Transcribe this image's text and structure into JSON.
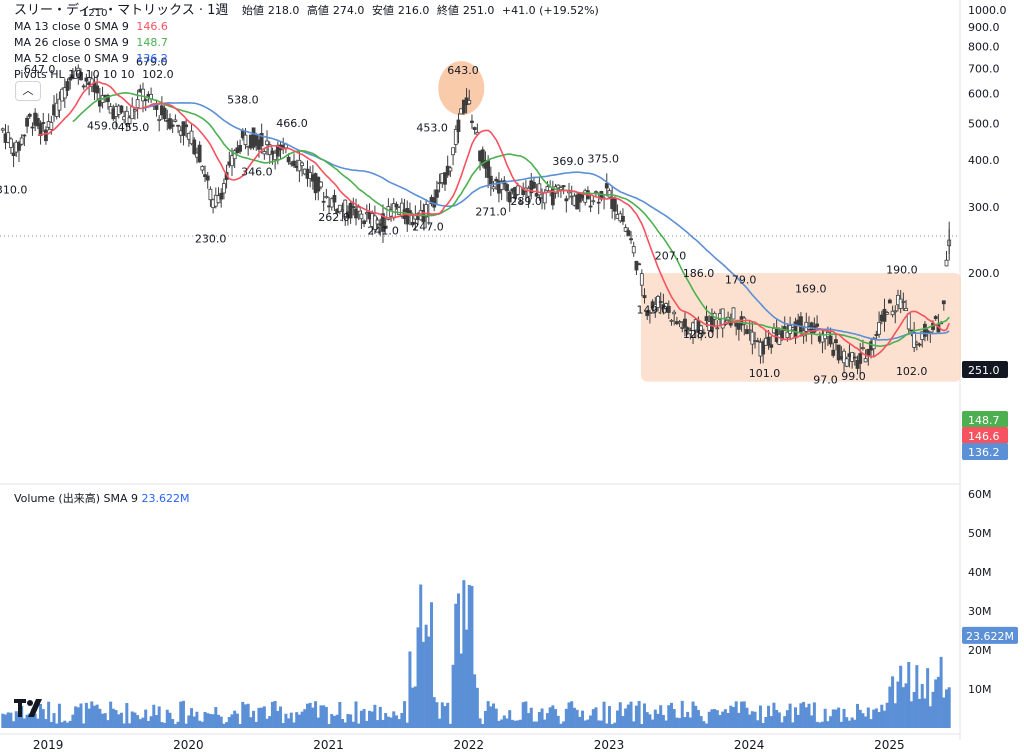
{
  "header": {
    "title": "スリー・ディー・マトリックス · 1週",
    "open_label": "始値",
    "open": "218.0",
    "high_label": "高値",
    "high": "274.0",
    "low_label": "安値",
    "low": "216.0",
    "close_label": "終値",
    "close": "251.0",
    "change": "+41.0 (+19.52%)"
  },
  "indicators": [
    {
      "label": "MA 13 close 0 SMA 9",
      "value": "146.6",
      "color": "#f7525f"
    },
    {
      "label": "MA 26 close 0 SMA 9",
      "value": "148.7",
      "color": "#4caf50"
    },
    {
      "label": "MA 52 close 0 SMA 9",
      "value": "136.2",
      "color": "#2962ff"
    },
    {
      "label": "Pivots HL 10 10 10 10",
      "value": "102.0",
      "color": "#131722"
    }
  ],
  "volume_legend": {
    "label": "Volume (出来高)",
    "ma": "SMA 9",
    "value": "23.622M"
  },
  "chart_data": {
    "type": "candlestick",
    "x_ticks": [
      "2019",
      "2020",
      "2021",
      "2022",
      "2023",
      "2024",
      "2025"
    ],
    "y_ticks": [
      "1000.0",
      "900.0",
      "800.0",
      "700.0",
      "600.0",
      "500.0",
      "400.0",
      "300.0",
      "200.0"
    ],
    "y_range": [
      60,
      1000
    ],
    "volume_ticks": [
      "60M",
      "50M",
      "40M",
      "30M",
      "20M",
      "10M"
    ],
    "volume_range": [
      0,
      62
    ],
    "pivot_labels": [
      {
        "text": "647.0",
        "date": 2018.95,
        "value": 647
      },
      {
        "text": "679.0",
        "date": 2019.75,
        "value": 679
      },
      {
        "text": "538.0",
        "date": 2020.4,
        "value": 538
      },
      {
        "text": "466.0",
        "date": 2020.75,
        "value": 466
      },
      {
        "text": "453.0",
        "date": 2021.75,
        "value": 453
      },
      {
        "text": "643.0",
        "date": 2021.97,
        "value": 643
      },
      {
        "text": "369.0",
        "date": 2022.72,
        "value": 369
      },
      {
        "text": "375.0",
        "date": 2022.97,
        "value": 375
      },
      {
        "text": "207.0",
        "date": 2023.45,
        "value": 207
      },
      {
        "text": "186.0",
        "date": 2023.65,
        "value": 186
      },
      {
        "text": "179.0",
        "date": 2023.95,
        "value": 179
      },
      {
        "text": "169.0",
        "date": 2024.45,
        "value": 169
      },
      {
        "text": "190.0",
        "date": 2025.1,
        "value": 190
      },
      {
        "text": "459.0",
        "date": 2019.4,
        "value": 459
      },
      {
        "text": "455.0",
        "date": 2019.62,
        "value": 455
      },
      {
        "text": "310.0",
        "date": 2018.75,
        "value": 310
      },
      {
        "text": "346.0",
        "date": 2020.5,
        "value": 346
      },
      {
        "text": "230.0",
        "date": 2020.17,
        "value": 230
      },
      {
        "text": "262.0",
        "date": 2021.05,
        "value": 262
      },
      {
        "text": "241.0",
        "date": 2021.4,
        "value": 241
      },
      {
        "text": "247.0",
        "date": 2021.72,
        "value": 247
      },
      {
        "text": "271.0",
        "date": 2022.17,
        "value": 271
      },
      {
        "text": "289.0",
        "date": 2022.42,
        "value": 289
      },
      {
        "text": "149.0",
        "date": 2023.32,
        "value": 149
      },
      {
        "text": "128.0",
        "date": 2023.65,
        "value": 128
      },
      {
        "text": "101.0",
        "date": 2024.12,
        "value": 101
      },
      {
        "text": "97.0",
        "date": 2024.58,
        "value": 97
      },
      {
        "text": "99.0",
        "date": 2024.78,
        "value": 99
      },
      {
        "text": "102.0",
        "date": 2025.17,
        "value": 102
      }
    ],
    "top_pivot_label": "1210",
    "price_series": [
      [
        2018.7,
        480
      ],
      [
        2018.8,
        420
      ],
      [
        2018.9,
        520
      ],
      [
        2019.0,
        470
      ],
      [
        2019.1,
        560
      ],
      [
        2019.2,
        700
      ],
      [
        2019.3,
        650
      ],
      [
        2019.4,
        580
      ],
      [
        2019.5,
        540
      ],
      [
        2019.6,
        520
      ],
      [
        2019.7,
        600
      ],
      [
        2019.8,
        540
      ],
      [
        2019.9,
        510
      ],
      [
        2020.0,
        480
      ],
      [
        2020.1,
        420
      ],
      [
        2020.2,
        300
      ],
      [
        2020.3,
        360
      ],
      [
        2020.4,
        450
      ],
      [
        2020.5,
        460
      ],
      [
        2020.6,
        430
      ],
      [
        2020.7,
        420
      ],
      [
        2020.8,
        400
      ],
      [
        2020.9,
        360
      ],
      [
        2021.0,
        320
      ],
      [
        2021.1,
        300
      ],
      [
        2021.2,
        290
      ],
      [
        2021.3,
        280
      ],
      [
        2021.4,
        270
      ],
      [
        2021.5,
        300
      ],
      [
        2021.6,
        280
      ],
      [
        2021.7,
        290
      ],
      [
        2021.8,
        320
      ],
      [
        2021.9,
        400
      ],
      [
        2022.0,
        580
      ],
      [
        2022.05,
        520
      ],
      [
        2022.1,
        420
      ],
      [
        2022.2,
        350
      ],
      [
        2022.3,
        330
      ],
      [
        2022.4,
        320
      ],
      [
        2022.5,
        340
      ],
      [
        2022.6,
        320
      ],
      [
        2022.7,
        330
      ],
      [
        2022.8,
        310
      ],
      [
        2022.9,
        320
      ],
      [
        2023.0,
        330
      ],
      [
        2023.1,
        290
      ],
      [
        2023.2,
        230
      ],
      [
        2023.3,
        160
      ],
      [
        2023.4,
        170
      ],
      [
        2023.5,
        150
      ],
      [
        2023.6,
        140
      ],
      [
        2023.7,
        145
      ],
      [
        2023.8,
        150
      ],
      [
        2023.9,
        155
      ],
      [
        2024.0,
        145
      ],
      [
        2024.1,
        125
      ],
      [
        2024.2,
        135
      ],
      [
        2024.3,
        140
      ],
      [
        2024.4,
        145
      ],
      [
        2024.5,
        140
      ],
      [
        2024.6,
        130
      ],
      [
        2024.7,
        120
      ],
      [
        2024.8,
        115
      ],
      [
        2024.9,
        130
      ],
      [
        2025.0,
        160
      ],
      [
        2025.1,
        170
      ],
      [
        2025.2,
        135
      ],
      [
        2025.3,
        140
      ],
      [
        2025.4,
        150
      ],
      [
        2025.45,
        251
      ]
    ],
    "current_price": 251.0,
    "ma_values": {
      "ma13": 146.6,
      "ma26": 148.7,
      "ma52": 136.2
    }
  },
  "colors": {
    "ma13": "#f7525f",
    "ma26": "#4caf50",
    "ma52": "#5b8fd6",
    "candle": "#3c3c3c",
    "volume": "#5b8fd6",
    "highlight": "#fbd4bc",
    "current": "#131722"
  }
}
